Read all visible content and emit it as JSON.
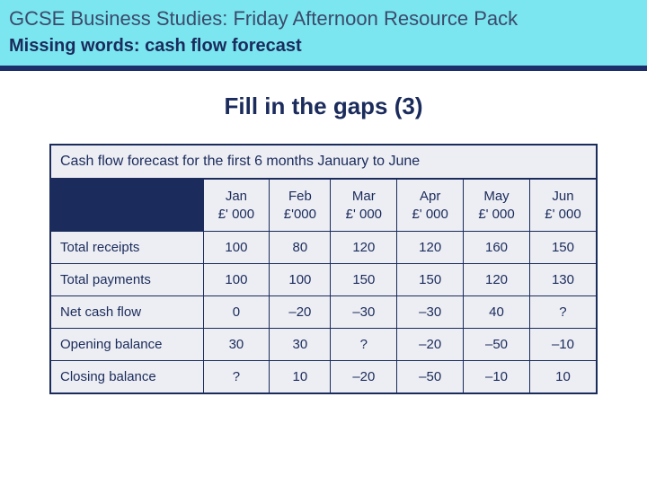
{
  "header": {
    "title": "GCSE Business Studies: Friday Afternoon Resource Pack",
    "subtitle": "Missing words: cash flow forecast"
  },
  "main_title": "Fill in the gaps (3)",
  "colors": {
    "header_band": "#7be5f0",
    "blue_strip": "#1d2f6b",
    "table_bg": "#edeef3",
    "text": "#1a2b5c",
    "header_title": "#3b4a6b"
  },
  "table": {
    "caption": "Cash flow forecast for the first 6 months January to June",
    "months": [
      {
        "name": "Jan",
        "unit": "£' 000"
      },
      {
        "name": "Feb",
        "unit": "£'000"
      },
      {
        "name": "Mar",
        "unit": "£' 000"
      },
      {
        "name": "Apr",
        "unit": "£' 000"
      },
      {
        "name": "May",
        "unit": "£' 000"
      },
      {
        "name": "Jun",
        "unit": "£' 000"
      }
    ],
    "rows": [
      {
        "label": "Total receipts",
        "values": [
          "100",
          "80",
          "120",
          "120",
          "160",
          "150"
        ]
      },
      {
        "label": "Total payments",
        "values": [
          "100",
          "100",
          "150",
          "150",
          "120",
          "130"
        ]
      },
      {
        "label": "Net cash flow",
        "values": [
          "0",
          "–20",
          "–30",
          "–30",
          "40",
          "?"
        ]
      },
      {
        "label": "Opening balance",
        "values": [
          "30",
          "30",
          "?",
          "–20",
          "–50",
          "–10"
        ]
      },
      {
        "label": "Closing balance",
        "values": [
          "?",
          "10",
          "–20",
          "–50",
          "–10",
          "10"
        ]
      }
    ]
  }
}
